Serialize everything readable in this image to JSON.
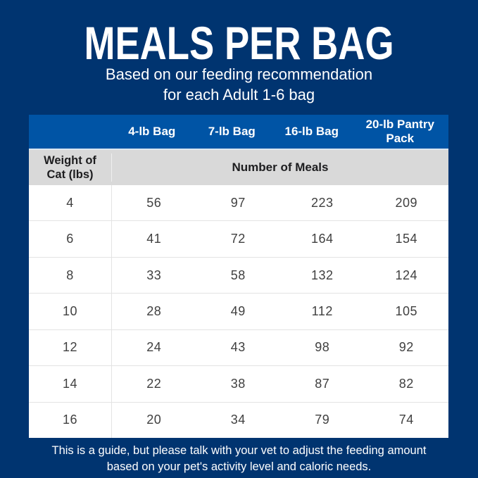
{
  "header": {
    "title": "MEALS PER BAG",
    "subtitle_line1": "Based on our feeding recommendation",
    "subtitle_line2": "for each Adult 1-6 bag"
  },
  "table": {
    "corner_label": "",
    "bag_columns": [
      "4-lb Bag",
      "7-lb Bag",
      "16-lb Bag",
      "20-lb Pantry Pack"
    ],
    "row_header_label": "Weight of Cat (lbs)",
    "span_label": "Number of Meals"
  },
  "footnote": {
    "line1": "This is a guide, but please talk with your vet to adjust the feeding amount",
    "line2": "based on your pet's activity level and caloric needs."
  },
  "colors": {
    "page_background": "#003470",
    "table_header_blue": "#0054a5",
    "subheader_gray": "#d9d9d9",
    "row_white": "#ffffff",
    "data_text": "#404040",
    "title_text": "#ffffff"
  },
  "chart_data": {
    "type": "table",
    "title": "MEALS PER BAG",
    "subtitle": "Based on our feeding recommendation for each Adult 1-6 bag",
    "columns": [
      "Weight of Cat (lbs)",
      "4-lb Bag",
      "7-lb Bag",
      "16-lb Bag",
      "20-lb Pantry Pack"
    ],
    "units_label": "Number of Meals",
    "rows": [
      [
        4,
        56,
        97,
        223,
        209
      ],
      [
        6,
        41,
        72,
        164,
        154
      ],
      [
        8,
        33,
        58,
        132,
        124
      ],
      [
        10,
        28,
        49,
        112,
        105
      ],
      [
        12,
        24,
        43,
        98,
        92
      ],
      [
        14,
        22,
        38,
        87,
        82
      ],
      [
        16,
        20,
        34,
        79,
        74
      ]
    ],
    "footnote": "This is a guide, but please talk with your vet to adjust the feeding amount based on your pet's activity level and caloric needs."
  }
}
